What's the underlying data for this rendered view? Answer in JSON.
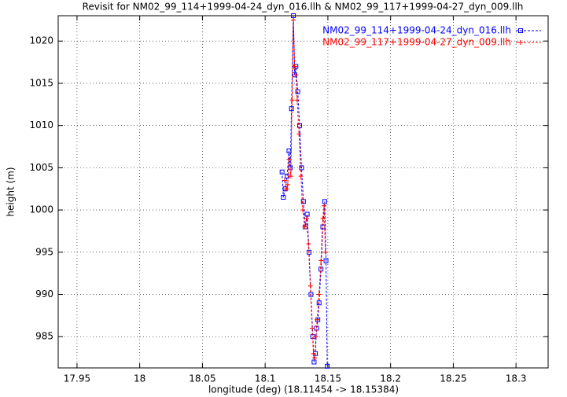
{
  "chart_data": {
    "type": "line",
    "title": "Revisit for NM02_99_114+1999-04-24_dyn_016.llh & NM02_99_117+1999-04-27_dyn_009.llh",
    "x_label": "longitude (deg) (18.11454 -> 18.15384)",
    "y_label": "height (m)",
    "xlim": [
      17.935,
      18.3256
    ],
    "ylim": [
      981.3,
      1023
    ],
    "xticks": [
      17.95,
      18,
      18.05,
      18.1,
      18.15,
      18.2,
      18.25,
      18.3
    ],
    "yticks": [
      985,
      990,
      995,
      1000,
      1005,
      1010,
      1015,
      1020
    ],
    "grid": true,
    "legend": "top-right",
    "series": [
      {
        "name": "NM02_99_114+1999-04-24_dyn_016.llh",
        "color": "#0000ff",
        "marker": "square",
        "x": [
          18.1135,
          18.1145,
          18.116,
          18.1175,
          18.119,
          18.12,
          18.121,
          18.1225,
          18.1235,
          18.1245,
          18.126,
          18.1275,
          18.129,
          18.1305,
          18.132,
          18.1335,
          18.135,
          18.1365,
          18.138,
          18.139,
          18.14,
          18.141,
          18.142,
          18.143,
          18.1445,
          18.146,
          18.1475,
          18.1485,
          18.1495
        ],
        "values": [
          1004.5,
          1001.5,
          1002.5,
          1004,
          1007,
          1005,
          1012,
          1023,
          1016,
          1017,
          1014,
          1010,
          1005,
          1001,
          998,
          999.5,
          995,
          990,
          985,
          982,
          983,
          986,
          987,
          989,
          993,
          998,
          1001,
          994,
          981.5
        ]
      },
      {
        "name": "NM02_99_117+1999-04-27_dyn_009.llh",
        "color": "#ff0000",
        "marker": "plus",
        "x": [
          18.1155,
          18.117,
          18.118,
          18.119,
          18.1205,
          18.1215,
          18.1225,
          18.1235,
          18.1245,
          18.1255,
          18.127,
          18.1285,
          18.13,
          18.1315,
          18.133,
          18.1345,
          18.136,
          18.1375,
          18.1385,
          18.1395,
          18.1405,
          18.1415,
          18.143,
          18.1445,
          18.146,
          18.147,
          18.148
        ],
        "values": [
          1003.5,
          1002.5,
          1003,
          1006,
          1004,
          1013,
          1022.5,
          1017,
          1016,
          1013,
          1009,
          1004,
          1000,
          998,
          999,
          996,
          991,
          986,
          983,
          982.5,
          985,
          987,
          990,
          994,
          999,
          1000.5,
          995
        ]
      }
    ]
  }
}
